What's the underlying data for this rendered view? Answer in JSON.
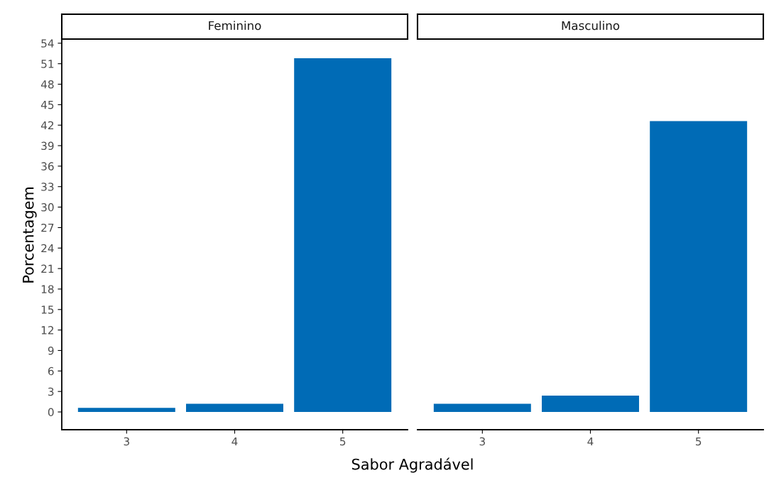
{
  "chart_data": [
    {
      "type": "bar",
      "title": "Feminino",
      "xlabel": "Sabor Agradável",
      "ylabel": "Porcentagem",
      "categories": [
        "3",
        "4",
        "5"
      ],
      "values": [
        0.6,
        1.2,
        51.8
      ],
      "color": "#006bb6",
      "ylim": [
        -2.6,
        54.4
      ],
      "yticks": [
        0,
        3,
        6,
        9,
        12,
        15,
        18,
        21,
        24,
        27,
        30,
        33,
        36,
        39,
        42,
        45,
        48,
        51,
        54
      ],
      "grid": false,
      "legend": false
    },
    {
      "type": "bar",
      "title": "Masculino",
      "categories": [
        "3",
        "4",
        "5"
      ],
      "values": [
        1.2,
        2.4,
        42.6
      ],
      "color": "#006bb6",
      "ylim": [
        -2.6,
        54.4
      ],
      "yticks": [
        0,
        3,
        6,
        9,
        12,
        15,
        18,
        21,
        24,
        27,
        30,
        33,
        36,
        39,
        42,
        45,
        48,
        51,
        54
      ],
      "tick_labels": "x",
      "grid": false,
      "legend": false
    }
  ]
}
